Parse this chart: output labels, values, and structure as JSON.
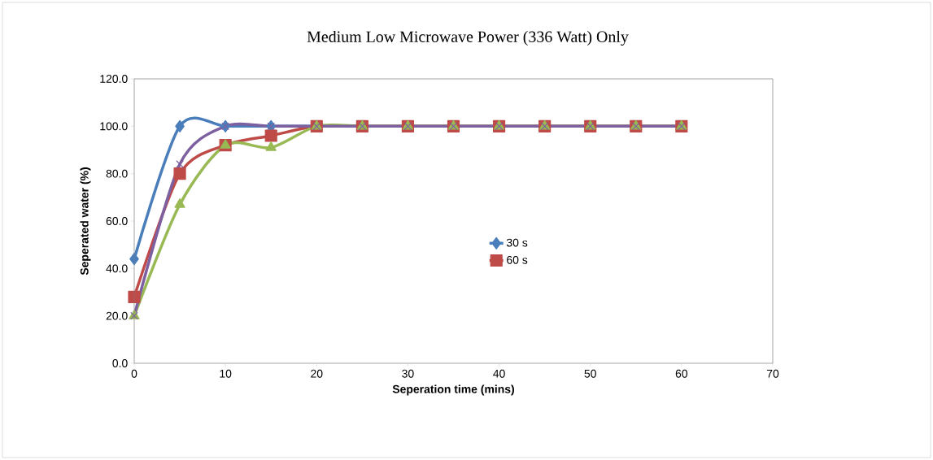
{
  "chart_data": {
    "type": "line",
    "title": "Medium Low Microwave Power (336 Watt) Only",
    "xlabel": "Seperation time (mins)",
    "ylabel": "Seperated water (%)",
    "x": [
      0,
      5,
      10,
      15,
      20,
      25,
      30,
      35,
      40,
      45,
      50,
      55,
      60
    ],
    "series": [
      {
        "name": "30 s",
        "color": "#4a7ebb",
        "marker": "diamond",
        "values": [
          44,
          100,
          100,
          100,
          100,
          100,
          null,
          null,
          null,
          null,
          null,
          null,
          null
        ]
      },
      {
        "name": "60 s",
        "color": "#be4b48",
        "marker": "square",
        "values": [
          28,
          80,
          92,
          96,
          100,
          100,
          100,
          100,
          100,
          100,
          100,
          100,
          100
        ]
      },
      {
        "color": "#98b954",
        "marker": "triangle",
        "values": [
          20,
          67,
          92,
          91,
          100,
          100,
          100,
          100,
          100,
          100,
          100,
          100,
          100
        ]
      },
      {
        "color": "#7d60a0",
        "marker": "cross",
        "values": [
          20,
          84,
          100,
          100,
          100,
          100,
          100,
          100,
          100,
          100,
          100,
          100,
          100
        ]
      }
    ],
    "xlim": [
      0,
      70
    ],
    "xticks": [
      0,
      10,
      20,
      30,
      40,
      50,
      60,
      70
    ],
    "ylim": [
      0,
      120
    ],
    "yticks": [
      {
        "value": 0,
        "label": "0.0"
      },
      {
        "value": 20,
        "label": "20.0"
      },
      {
        "value": 40,
        "label": "40.0"
      },
      {
        "value": 60,
        "label": "60.0"
      },
      {
        "value": 80,
        "label": "80.0"
      },
      {
        "value": 100,
        "label": "100.0"
      },
      {
        "value": 120,
        "label": "120.0"
      }
    ],
    "grid": false,
    "legend": "right",
    "line_style": "solid"
  }
}
